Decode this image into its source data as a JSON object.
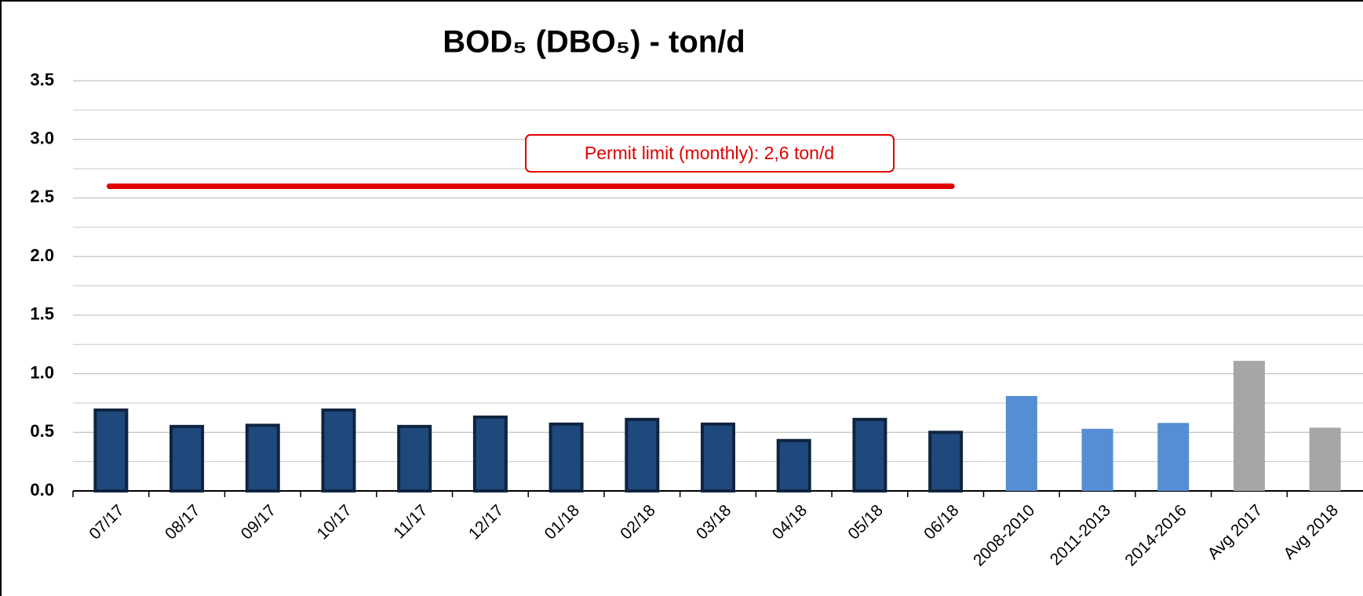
{
  "chart_data": {
    "type": "bar",
    "title": "BOD₅  (DBO₅)  - ton/d",
    "categories": [
      "07/17",
      "08/17",
      "09/17",
      "10/17",
      "11/17",
      "12/17",
      "01/18",
      "02/18",
      "03/18",
      "04/18",
      "05/18",
      "06/18",
      "2008-2010",
      "2011-2013",
      "2014-2016",
      "Avg 2017",
      "Avg 2018"
    ],
    "values": [
      0.69,
      0.55,
      0.56,
      0.69,
      0.55,
      0.63,
      0.57,
      0.61,
      0.57,
      0.43,
      0.61,
      0.5,
      0.81,
      0.53,
      0.58,
      1.11,
      0.54
    ],
    "colors": [
      "#1f497d",
      "#1f497d",
      "#1f497d",
      "#1f497d",
      "#1f497d",
      "#1f497d",
      "#1f497d",
      "#1f497d",
      "#1f497d",
      "#1f497d",
      "#1f497d",
      "#1f497d",
      "#558ed5",
      "#558ed5",
      "#558ed5",
      "#a6a6a6",
      "#a6a6a6"
    ],
    "ylim": [
      0,
      3.5
    ],
    "yticks": [
      {
        "value": 0,
        "label": "0.0"
      },
      {
        "value": 0.5,
        "label": "0.5"
      },
      {
        "value": 1,
        "label": "1.0"
      },
      {
        "value": 1.5,
        "label": "1.5"
      },
      {
        "value": 2,
        "label": "2.0"
      },
      {
        "value": 2.5,
        "label": "2.5"
      },
      {
        "value": 3,
        "label": "3.0"
      },
      {
        "value": 3.5,
        "label": "3.5"
      }
    ],
    "minor_yticks": [
      0.25,
      0.75,
      1.25,
      1.75,
      2.25,
      2.75,
      3.25
    ],
    "grid": true,
    "limit": {
      "value": 2.6,
      "label": "Permit limit (monthly): 2,6 ton/d",
      "color": "#e00000",
      "from": "07/17",
      "to": "06/18"
    }
  }
}
